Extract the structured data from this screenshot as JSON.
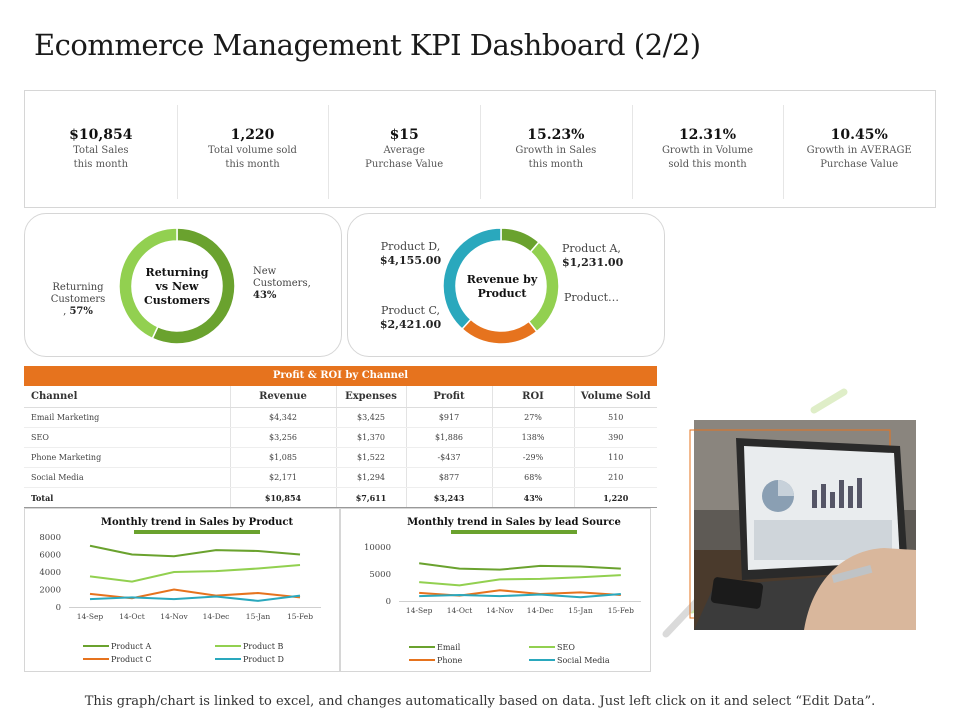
{
  "title": "Ecommerce Management KPI Dashboard (2/2)",
  "kpis": [
    {
      "value": "$10,854",
      "label1": "Total Sales",
      "label2": "this month"
    },
    {
      "value": "1,220",
      "label1": "Total volume sold",
      "label2": "this month"
    },
    {
      "value": "$15",
      "label1": "Average",
      "label2": "Purchase Value"
    },
    {
      "value": "15.23%",
      "label1": "Growth in Sales",
      "label2": "this month"
    },
    {
      "value": "12.31%",
      "label1": "Growth in Volume",
      "label2": "sold this month"
    },
    {
      "value": "10.45%",
      "label1": "Growth in AVERAGE",
      "label2": "Purchase Value"
    }
  ],
  "donut1": {
    "center": [
      "Returning",
      "vs New",
      "Customers"
    ],
    "left_label": [
      "Returning",
      "Customers"
    ],
    "left_value_prefix": ", ",
    "left_value": "57%",
    "right_label": [
      "New",
      "Customers,"
    ],
    "right_value": "43%",
    "colors": {
      "returning": "#6aa22e",
      "new": "#92d050"
    }
  },
  "donut2": {
    "center": [
      "Revenue by",
      "Product"
    ],
    "labels": {
      "d_name": "Product D,",
      "d_value": "$4,155.00",
      "a_name": "Product A,",
      "a_value": "$1,231.00",
      "b_name": "Product…",
      "c_name": "Product C,",
      "c_value": "$2,421.00"
    },
    "colors": {
      "a": "#6aa22e",
      "b": "#92d050",
      "c": "#e6731e",
      "d": "#2aa8bd"
    }
  },
  "table": {
    "title": "Profit & ROI by Channel",
    "headers": [
      "Channel",
      "Revenue",
      "Expenses",
      "Profit",
      "ROI",
      "Volume Sold"
    ],
    "rows": [
      [
        "Email Marketing",
        "$4,342",
        "$3,425",
        "$917",
        "27%",
        "510"
      ],
      [
        "SEO",
        "$3,256",
        "$1,370",
        "$1,886",
        "138%",
        "390"
      ],
      [
        "Phone Marketing",
        "$1,085",
        "$1,522",
        "-$437",
        "-29%",
        "110"
      ],
      [
        "Social Media",
        "$2,171",
        "$1,294",
        "$877",
        "68%",
        "210"
      ]
    ],
    "total": [
      "Total",
      "$10,854",
      "$7,611",
      "$3,243",
      "43%",
      "1,220"
    ]
  },
  "footer": "This graph/chart is linked to excel, and changes automatically based on data. Just left click on it and select “Edit Data”.",
  "chart_data": [
    {
      "type": "pie",
      "categories": [
        "Returning Customers",
        "New Customers"
      ],
      "values": [
        57,
        43
      ]
    },
    {
      "type": "pie",
      "categories": [
        "Product A",
        "Product B",
        "Product C",
        "Product D"
      ],
      "values": [
        1231,
        3047,
        2421,
        4155
      ]
    },
    {
      "type": "line",
      "title": "Monthly trend in Sales by Product",
      "categories": [
        "14-Sep",
        "14-Oct",
        "14-Nov",
        "14-Dec",
        "15-Jan",
        "15-Feb"
      ],
      "yticks": [
        0,
        2000,
        4000,
        6000,
        8000
      ],
      "ylim": [
        0,
        8000
      ],
      "grid": false,
      "legend": "bottom",
      "series": [
        {
          "name": "Product A",
          "color": "#6aa22e",
          "values": [
            7000,
            6000,
            5800,
            6500,
            6400,
            6000
          ]
        },
        {
          "name": "Product B",
          "color": "#92d050",
          "values": [
            3500,
            2900,
            4000,
            4100,
            4400,
            4800
          ]
        },
        {
          "name": "Product C",
          "color": "#e6731e",
          "values": [
            1500,
            1000,
            2000,
            1300,
            1600,
            1100
          ]
        },
        {
          "name": "Product D",
          "color": "#2aa8bd",
          "values": [
            900,
            1100,
            900,
            1200,
            700,
            1300
          ]
        }
      ]
    },
    {
      "type": "line",
      "title": "Monthly trend in Sales by lead Source",
      "categories": [
        "14-Sep",
        "14-Oct",
        "14-Nov",
        "14-Dec",
        "15-Jan",
        "15-Feb"
      ],
      "yticks": [
        0,
        5000,
        10000
      ],
      "ylim": [
        0,
        10000
      ],
      "grid": false,
      "legend": "bottom",
      "series": [
        {
          "name": "Email",
          "color": "#6aa22e",
          "values": [
            7000,
            6000,
            5800,
            6500,
            6400,
            6000
          ]
        },
        {
          "name": "SEO",
          "color": "#92d050",
          "values": [
            3500,
            2900,
            4000,
            4100,
            4400,
            4800
          ]
        },
        {
          "name": "Phone",
          "color": "#e6731e",
          "values": [
            1500,
            1000,
            2000,
            1300,
            1600,
            1100
          ]
        },
        {
          "name": "Social Media",
          "color": "#2aa8bd",
          "values": [
            900,
            1100,
            900,
            1200,
            700,
            1300
          ]
        }
      ]
    }
  ]
}
